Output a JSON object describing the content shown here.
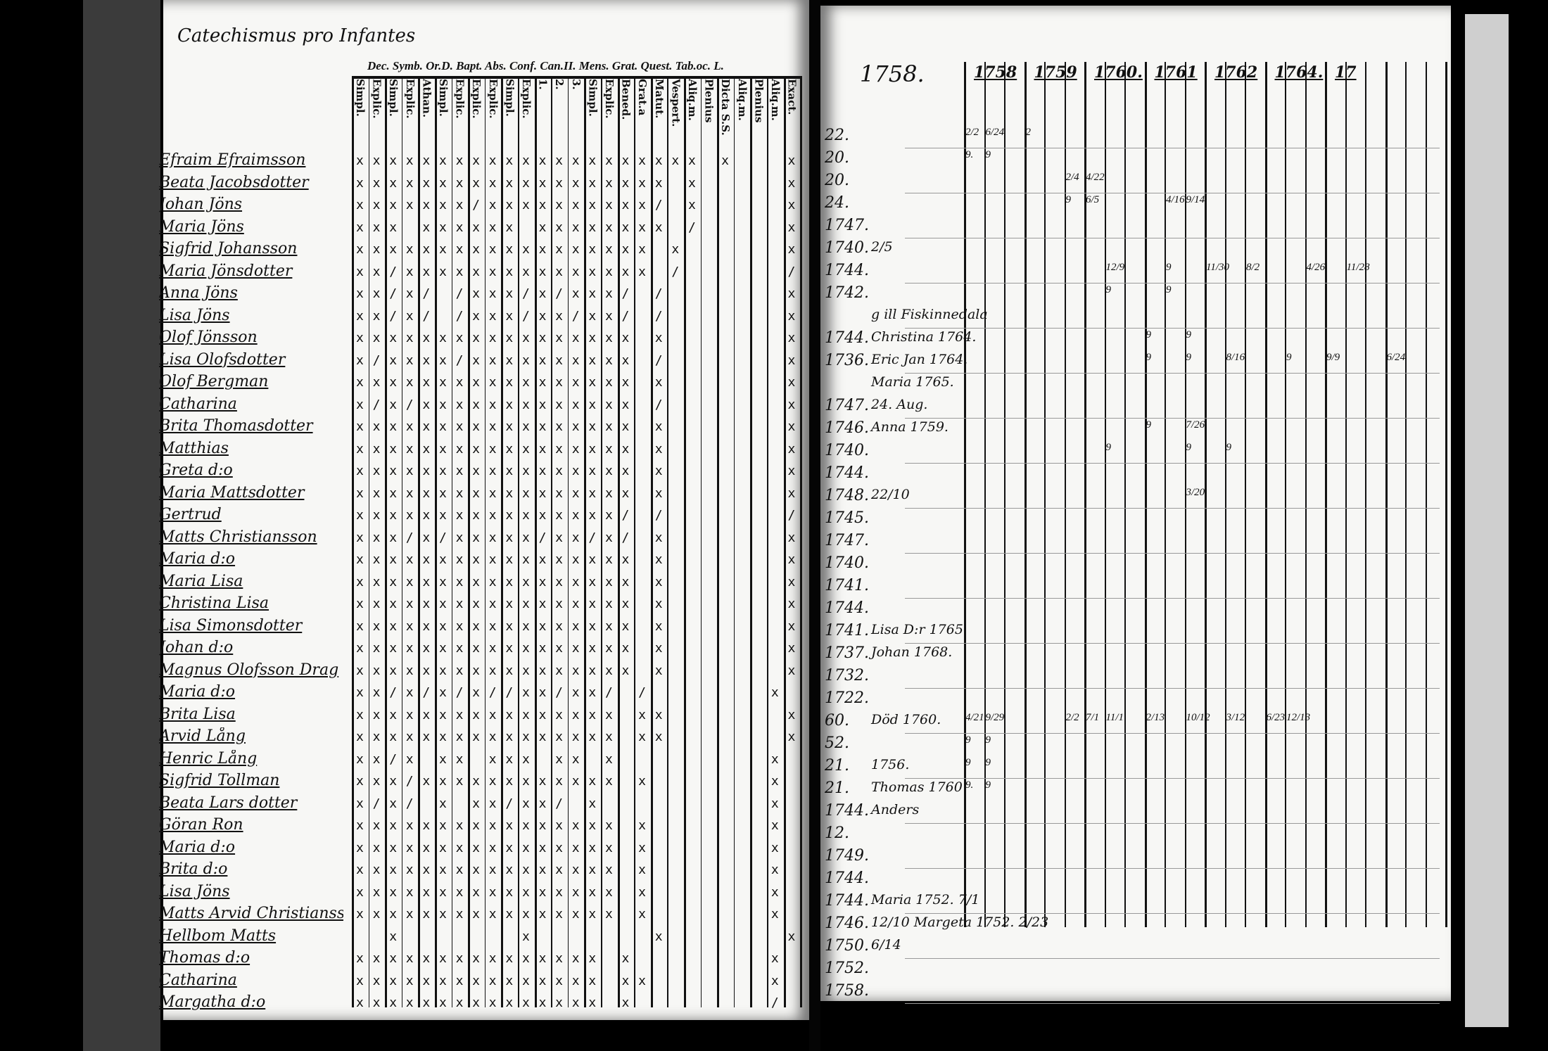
{
  "left_page": {
    "title": "Catechismus pro Infantes",
    "header_groups": "Dec. Symb. Or.D. Bapt. Abs. Conf. Can.II. Mens. Grat. Quest. Tab.oc. L.",
    "subcolumns": [
      "Simpl.",
      "Explic.",
      "Simpl.",
      "Explic.",
      "Athan.",
      "Simpl.",
      "Explic.",
      "Explic.",
      "Explic.",
      "Simpl.",
      "Explic.",
      "1.",
      "2.",
      "3.",
      "Simpl.",
      "Explic.",
      "Bened.",
      "Grat.a",
      "Matut.",
      "Vespert.",
      "Aliq.m.",
      "Plenius",
      "Dicta S.S.",
      "Aliq.m.",
      "Plenius",
      "Aliq.m.",
      "Exact."
    ],
    "rows": [
      {
        "name": "Efraim Efraimsson",
        "marks": "xxxxxxxxxxxxxxxxxxxxx x   x"
      },
      {
        "name": "Beata Jacobsdotter",
        "marks": "xxxxxxxxxxxxxxxxxxx x     x"
      },
      {
        "name": "Johan Jöns",
        "marks": "xxxxxxx/xxxxxxxxxx/ x     x"
      },
      {
        "name": "Maria Jöns",
        "marks": "xxx xxxxxx xxxxxxxx /     x"
      },
      {
        "name": "Sigfrid Johansson",
        "marks": "xxxxxxxxxxxxxxxxxx x      x"
      },
      {
        "name": "Maria Jönsdotter",
        "marks": "xx/xxxxxxxxxxxxxxx /      /"
      },
      {
        "name": "Anna Jöns",
        "marks": "xx/x/ /xxx/x/xxx/ /       x"
      },
      {
        "name": "Lisa Jöns",
        "marks": "xx/x/ /xxx/xx/xx/ /       x"
      },
      {
        "name": "Olof Jönsson",
        "marks": "xxxxxxxxxxxxxxxxx x       x"
      },
      {
        "name": "Lisa Olofsdotter",
        "marks": "x/xxxx/xxxxxxxxxx /       x"
      },
      {
        "name": "Olof Bergman",
        "marks": "xxxxxxxxxxxxxxxxx x       x"
      },
      {
        "name": "Catharina",
        "marks": "x/x/xxxxxxxxxxxxx /       x"
      },
      {
        "name": "Brita Thomasdotter",
        "marks": "xxxxxxxxxxxxxxxxx x       x"
      },
      {
        "name": "Matthias",
        "marks": "xxxxxxxxxxxxxxxxx x       x"
      },
      {
        "name": "Greta d:o",
        "marks": "xxxxxxxxxxxxxxxxx x       x"
      },
      {
        "name": "Maria Mattsdotter",
        "marks": "xxxxxxxxxxxxxxxxx x       x"
      },
      {
        "name": "Gertrud",
        "marks": "xxxxxxxxxxxxxxxx/ /       /"
      },
      {
        "name": "Matts Christiansson",
        "marks": "xxx/x/xxxxx/xx/x/ x       x"
      },
      {
        "name": "Maria d:o",
        "marks": "xxxxxxxxxxxxxxxxx x       x"
      },
      {
        "name": "Maria Lisa",
        "marks": "xxxxxxxxxxxxxxxxx x       x"
      },
      {
        "name": "Christina Lisa",
        "marks": "xxxxxxxxxxxxxxxxx x       x"
      },
      {
        "name": "Lisa Simonsdotter",
        "marks": "xxxxxxxxxxxxxxxxx x       x"
      },
      {
        "name": "Johan d:o",
        "marks": "xxxxxxxxxxxxxxxxx x       x"
      },
      {
        "name": "Magnus Olofsson Drag",
        "marks": "xxxxxxxxxxxxxxxxx x       x"
      },
      {
        "name": "Maria d:o",
        "marks": "xx/x/x/x//xx/xx/ /       x"
      },
      {
        "name": "Brita Lisa",
        "marks": "xxxxxxxxxxxxxxxx xx       x"
      },
      {
        "name": "Arvid Lång",
        "marks": "xxxxxxxxxxxxxxxx xx       x"
      },
      {
        "name": "Henric Lång",
        "marks": "xx/x xx xxx xx x         x"
      },
      {
        "name": "Sigfrid Tollman",
        "marks": "xxx/xxxxxxxxxxxx x       x"
      },
      {
        "name": "Beata Lars dotter",
        "marks": "x/x/ x xx/xx/ x          x"
      },
      {
        "name": "Göran Ron",
        "marks": "xxxxxxxxxxxxxxxx x       x"
      },
      {
        "name": "Maria d:o",
        "marks": "xxxxxxxxxxxxxxxx x       x"
      },
      {
        "name": "Brita d:o",
        "marks": "xxxxxxxxxxxxxxxx x       x"
      },
      {
        "name": "Lisa Jöns",
        "marks": "xxxxxxxxxxxxxxxx x       x"
      },
      {
        "name": "Matts Arvid Christiansson",
        "marks": "xxxxxxxxxxxxxxxx x       x"
      },
      {
        "name": "Hellbom Matts",
        "marks": "  x       x       x       x"
      },
      {
        "name": "Thomas d:o",
        "marks": "xxxxxxxxxxxxxxx x        x"
      },
      {
        "name": "Catharina",
        "marks": "xxxxxxxxxxxxxxx xx       x"
      },
      {
        "name": "Margatha d:o",
        "marks": "xxxxxxxxxxxxxxx x        /"
      }
    ]
  },
  "right_page": {
    "year_heading": "1758.",
    "years": [
      "1758",
      "1759",
      "1760.",
      "1761",
      "1762",
      "1764.",
      "17"
    ],
    "rows": [
      {
        "num": "22.",
        "note": ""
      },
      {
        "num": "20.",
        "note": ""
      },
      {
        "num": "20.",
        "note": ""
      },
      {
        "num": "24.",
        "note": ""
      },
      {
        "num": "1747.",
        "note": ""
      },
      {
        "num": "1740.",
        "note": "2/5"
      },
      {
        "num": "1744.",
        "note": ""
      },
      {
        "num": "1742.",
        "note": ""
      },
      {
        "num": "",
        "note": "g ill Fiskinnedala"
      },
      {
        "num": "1744.",
        "note": "Christina 1764."
      },
      {
        "num": "1736.",
        "note": "Eric Jan 1764."
      },
      {
        "num": "",
        "note": "Maria 1765."
      },
      {
        "num": "1747.",
        "note": "24. Aug."
      },
      {
        "num": "1746.",
        "note": "Anna 1759."
      },
      {
        "num": "1740.",
        "note": ""
      },
      {
        "num": "1744.",
        "note": ""
      },
      {
        "num": "1748.",
        "note": "22/10"
      },
      {
        "num": "1745.",
        "note": ""
      },
      {
        "num": "1747.",
        "note": ""
      },
      {
        "num": "1740.",
        "note": ""
      },
      {
        "num": "1741.",
        "note": ""
      },
      {
        "num": "1744.",
        "note": ""
      },
      {
        "num": "1741.",
        "note": "Lisa D:r 1765"
      },
      {
        "num": "1737.",
        "note": "Johan 1768."
      },
      {
        "num": "1732.",
        "note": ""
      },
      {
        "num": "1722.",
        "note": ""
      },
      {
        "num": "60.",
        "note": "Död 1760."
      },
      {
        "num": "52.",
        "note": ""
      },
      {
        "num": "21.",
        "note": "1756."
      },
      {
        "num": "21.",
        "note": "Thomas 1760"
      },
      {
        "num": "1744.",
        "note": "Anders"
      },
      {
        "num": "12.",
        "note": ""
      },
      {
        "num": "1749.",
        "note": ""
      },
      {
        "num": "1744.",
        "note": ""
      },
      {
        "num": "1744.",
        "note": "Maria 1752. 7/1"
      },
      {
        "num": "1746.",
        "note": "12/10 Margeta 1752. 2/23"
      },
      {
        "num": "1750.",
        "note": "6/14"
      },
      {
        "num": "1752.",
        "note": ""
      },
      {
        "num": "1758.",
        "note": ""
      }
    ],
    "entries": [
      {
        "row": 0,
        "col": 0,
        "text": "2/2"
      },
      {
        "row": 0,
        "col": 1,
        "text": "6/24"
      },
      {
        "row": 0,
        "col": 3,
        "text": "2"
      },
      {
        "row": 1,
        "col": 0,
        "text": "9."
      },
      {
        "row": 1,
        "col": 1,
        "text": "9"
      },
      {
        "row": 2,
        "col": 5,
        "text": "2/4"
      },
      {
        "row": 2,
        "col": 6,
        "text": "4/22"
      },
      {
        "row": 3,
        "col": 5,
        "text": "9"
      },
      {
        "row": 3,
        "col": 6,
        "text": "6/5"
      },
      {
        "row": 3,
        "col": 10,
        "text": "4/16"
      },
      {
        "row": 3,
        "col": 11,
        "text": "9/14"
      },
      {
        "row": 6,
        "col": 7,
        "text": "12/9"
      },
      {
        "row": 6,
        "col": 10,
        "text": "9"
      },
      {
        "row": 6,
        "col": 12,
        "text": "11/30"
      },
      {
        "row": 6,
        "col": 14,
        "text": "8/2"
      },
      {
        "row": 6,
        "col": 17,
        "text": "4/26"
      },
      {
        "row": 6,
        "col": 19,
        "text": "11/28"
      },
      {
        "row": 7,
        "col": 7,
        "text": "9"
      },
      {
        "row": 7,
        "col": 10,
        "text": "9"
      },
      {
        "row": 9,
        "col": 9,
        "text": "9"
      },
      {
        "row": 9,
        "col": 11,
        "text": "9"
      },
      {
        "row": 10,
        "col": 9,
        "text": "9"
      },
      {
        "row": 10,
        "col": 11,
        "text": "9"
      },
      {
        "row": 10,
        "col": 13,
        "text": "8/16"
      },
      {
        "row": 10,
        "col": 16,
        "text": "9"
      },
      {
        "row": 10,
        "col": 18,
        "text": "9/9"
      },
      {
        "row": 10,
        "col": 21,
        "text": "6/24"
      },
      {
        "row": 13,
        "col": 9,
        "text": "9"
      },
      {
        "row": 13,
        "col": 11,
        "text": "7/26"
      },
      {
        "row": 14,
        "col": 7,
        "text": "9"
      },
      {
        "row": 14,
        "col": 11,
        "text": "9"
      },
      {
        "row": 14,
        "col": 13,
        "text": "9"
      },
      {
        "row": 16,
        "col": 11,
        "text": "3/20"
      },
      {
        "row": 26,
        "col": 0,
        "text": "4/21"
      },
      {
        "row": 26,
        "col": 1,
        "text": "9/29"
      },
      {
        "row": 26,
        "col": 5,
        "text": "2/2"
      },
      {
        "row": 26,
        "col": 6,
        "text": "7/1"
      },
      {
        "row": 26,
        "col": 7,
        "text": "11/1"
      },
      {
        "row": 26,
        "col": 9,
        "text": "2/13"
      },
      {
        "row": 26,
        "col": 11,
        "text": "10/12"
      },
      {
        "row": 26,
        "col": 13,
        "text": "3/12"
      },
      {
        "row": 26,
        "col": 15,
        "text": "6/23"
      },
      {
        "row": 26,
        "col": 16,
        "text": "12/13"
      },
      {
        "row": 27,
        "col": 0,
        "text": "9"
      },
      {
        "row": 27,
        "col": 1,
        "text": "9"
      },
      {
        "row": 28,
        "col": 0,
        "text": "9"
      },
      {
        "row": 28,
        "col": 1,
        "text": "9"
      },
      {
        "row": 29,
        "col": 0,
        "text": "9."
      },
      {
        "row": 29,
        "col": 1,
        "text": "9"
      }
    ]
  }
}
